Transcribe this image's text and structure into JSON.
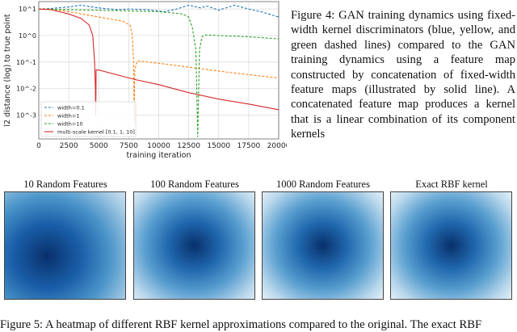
{
  "figure4": {
    "caption": "Figure 4: GAN training dynamics using fixed-width kernel discriminators (blue, yellow, and green dashed lines) compared to the GAN training dynamics using a feature map constructed by concatenation of fixed-width feature maps (illustrated by solid line). A concatenated feature map produces a kernel that is a linear combination of its component kernels"
  },
  "chart_data": {
    "type": "line",
    "xlabel": "training iteration",
    "ylabel": "l2 distance (log) to true point",
    "yscale": "log",
    "xlim": [
      0,
      20000
    ],
    "ylim_log10": [
      -3.9,
      1.28
    ],
    "grid": true,
    "legend_position": "bottom-left",
    "xticks": [
      "0",
      "2500",
      "5000",
      "7500",
      "10000",
      "12500",
      "15000",
      "17500",
      "20000"
    ],
    "yticks": [
      {
        "label": "10^1",
        "v": 1
      },
      {
        "label": "10^0",
        "v": 0
      },
      {
        "label": "10^-1",
        "v": -1
      },
      {
        "label": "10^-2",
        "v": -2
      },
      {
        "label": "10^-3",
        "v": -3
      }
    ],
    "series": [
      {
        "name": "width=0.1",
        "color": "#1f77b4",
        "dash": true,
        "x": [
          0,
          1000,
          2500,
          3500,
          5000,
          6500,
          7500,
          9000,
          10500,
          11500,
          12500,
          13500,
          14000,
          15000,
          16300,
          17500,
          18500,
          20000
        ],
        "y": [
          10,
          10.5,
          12,
          14,
          11,
          9.5,
          10,
          9.5,
          8,
          10,
          14,
          11,
          13,
          9,
          14,
          10,
          8,
          5
        ]
      },
      {
        "name": "width=1",
        "color": "#ff7f0e",
        "dash": true,
        "x": [
          0,
          1000,
          2500,
          5000,
          7000,
          7600,
          7800,
          7900,
          7950,
          8000,
          8200,
          10000,
          13000,
          16000,
          20000
        ],
        "y": [
          10,
          10,
          8,
          5,
          3.5,
          2.5,
          1,
          0.1,
          0.0005,
          0.05,
          0.11,
          0.09,
          0.06,
          0.04,
          0.025
        ]
      },
      {
        "name": "width=10",
        "color": "#2ca02c",
        "dash": true,
        "x": [
          0,
          2500,
          5000,
          7500,
          10000,
          12000,
          12500,
          12800,
          13100,
          13250,
          13400,
          13600,
          13800,
          15000,
          17500,
          20000
        ],
        "y": [
          10,
          9.5,
          9,
          8.5,
          8,
          6.5,
          5,
          2,
          0.3,
          0.00015,
          0.3,
          0.9,
          1.05,
          1,
          0.9,
          0.75
        ]
      },
      {
        "name": "multi-scale kernel [0.1, 1, 10]",
        "color": "#d62728",
        "dash": false,
        "x": [
          0,
          1000,
          2500,
          3500,
          4200,
          4500,
          4650,
          4720,
          4750,
          4780,
          4850,
          5000,
          8000,
          10000,
          12500,
          15000,
          17500,
          20000
        ],
        "y": [
          10,
          9.5,
          6.5,
          4.5,
          2.5,
          1,
          0.1,
          0.01,
          0.001,
          0.05,
          0.05,
          0.05,
          0.022,
          0.014,
          0.007,
          0.004,
          0.0026,
          0.0016
        ]
      }
    ]
  },
  "figure5": {
    "panels": [
      {
        "title": "10 Random Features"
      },
      {
        "title": "100 Random Features"
      },
      {
        "title": "1000 Random Features"
      },
      {
        "title": "Exact RBF kernel"
      }
    ],
    "caption": "Figure 5: A heatmap of different RBF kernel approximations compared to the original. The exact RBF"
  }
}
